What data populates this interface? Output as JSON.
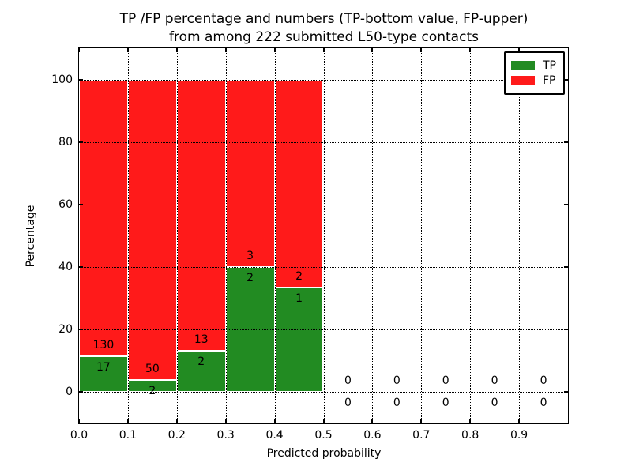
{
  "figure": {
    "title_line1": "TP /FP percentage and numbers (TP-bottom value, FP-upper)",
    "title_line2": "from among 222 submitted L50-type contacts",
    "background_color": "#ffffff"
  },
  "chart_data": {
    "type": "bar",
    "stacked": true,
    "title": "TP /FP percentage and numbers (TP-bottom value, FP-upper)\nfrom among 222 submitted L50-type contacts",
    "xlabel": "Predicted probability",
    "ylabel": "Percentage",
    "xlim": [
      0.0,
      1.0
    ],
    "ylim": [
      -10,
      110
    ],
    "xtick_values": [
      0.0,
      0.1,
      0.2,
      0.3,
      0.4,
      0.5,
      0.6,
      0.7,
      0.8,
      0.9
    ],
    "xtick_labels": [
      "0.0",
      "0.1",
      "0.2",
      "0.3",
      "0.4",
      "0.5",
      "0.6",
      "0.7",
      "0.8",
      "0.9"
    ],
    "ytick_values": [
      0,
      20,
      40,
      60,
      80,
      100
    ],
    "ytick_labels": [
      "0",
      "20",
      "40",
      "60",
      "80",
      "100"
    ],
    "grid": "dotted black, drawn above bars",
    "bin_width": 0.1,
    "categories": [
      "0.0-0.1",
      "0.1-0.2",
      "0.2-0.3",
      "0.3-0.4",
      "0.4-0.5",
      "0.5-0.6",
      "0.6-0.7",
      "0.7-0.8",
      "0.8-0.9",
      "0.9-1.0"
    ],
    "series": [
      {
        "name": "TP",
        "color": "#228b22",
        "counts": [
          17,
          2,
          2,
          2,
          1,
          0,
          0,
          0,
          0,
          0
        ]
      },
      {
        "name": "FP",
        "color": "#ff1a1a",
        "counts": [
          130,
          50,
          13,
          3,
          2,
          0,
          0,
          0,
          0,
          0
        ]
      }
    ],
    "tp_percent_of_bin": [
      11.56,
      3.85,
      13.33,
      40.0,
      33.33,
      0,
      0,
      0,
      0,
      0
    ],
    "total_contacts": 222,
    "bar_edge_color": "#ffffff",
    "legend": {
      "position": "upper right",
      "entries": [
        {
          "label": "TP",
          "color": "#228b22"
        },
        {
          "label": "FP",
          "color": "#ff1a1a"
        }
      ]
    }
  }
}
